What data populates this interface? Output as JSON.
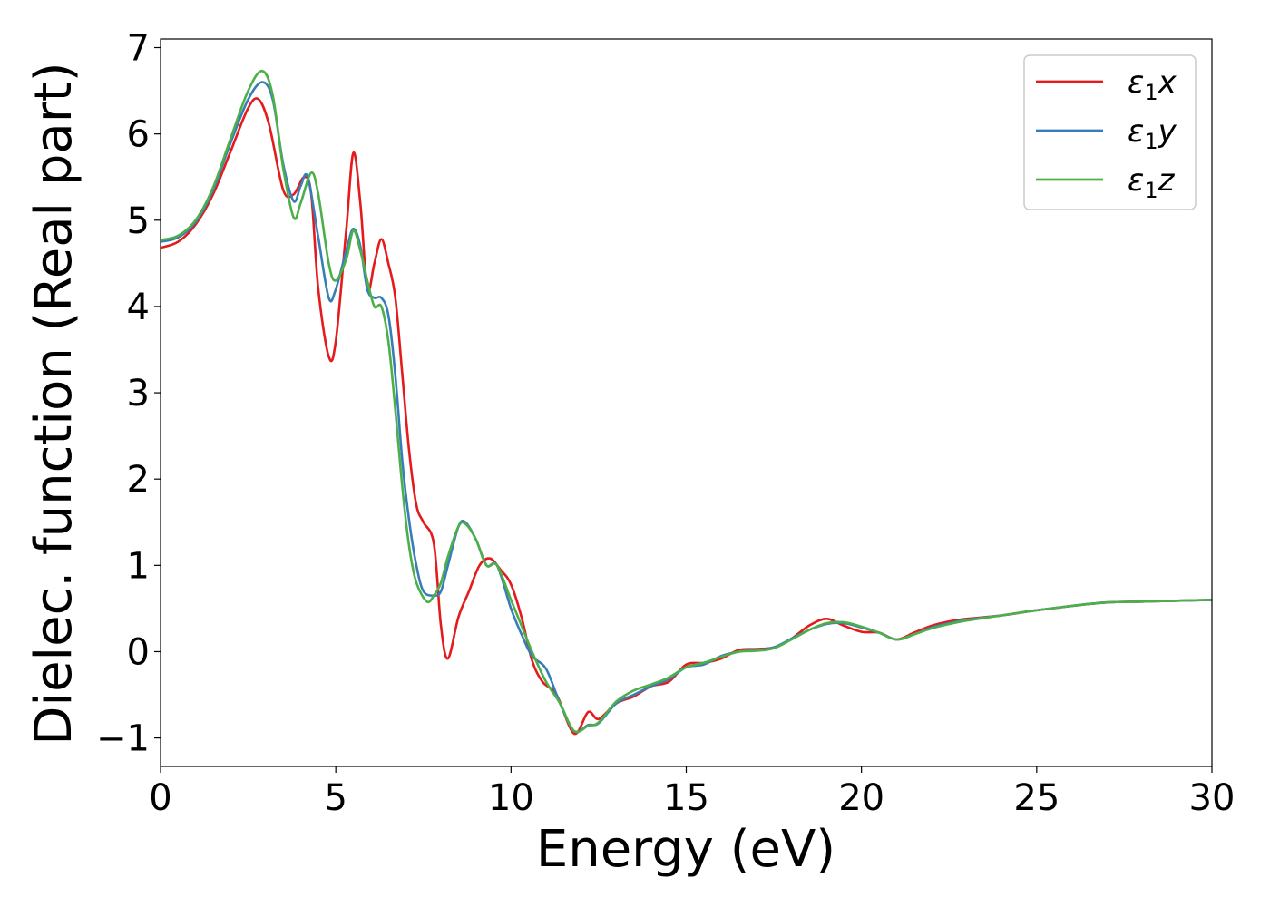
{
  "chart_data": {
    "type": "line",
    "title": "",
    "xlabel": "Energy (eV)",
    "ylabel": "Dielec. function (Real part)",
    "xlim": [
      0,
      30
    ],
    "ylim": [
      -1.33,
      7.1
    ],
    "xticks": [
      0,
      5,
      10,
      15,
      20,
      25,
      30
    ],
    "xtick_labels": [
      "0",
      "5",
      "10",
      "15",
      "20",
      "25",
      "30"
    ],
    "yticks": [
      -1,
      0,
      1,
      2,
      3,
      4,
      5,
      6,
      7
    ],
    "ytick_labels": [
      "−1",
      "0",
      "1",
      "2",
      "3",
      "4",
      "5",
      "6",
      "7"
    ],
    "grid": false,
    "legend_position": "top-right",
    "series": [
      {
        "name": "ε₁x",
        "legend_main": "ε",
        "legend_sub": "1",
        "legend_var": "x",
        "color": "#e41a1c",
        "x": [
          0,
          0.5,
          1.0,
          1.5,
          2.0,
          2.5,
          2.8,
          3.1,
          3.5,
          3.8,
          4.1,
          4.3,
          4.5,
          4.8,
          5.0,
          5.3,
          5.5,
          5.7,
          5.9,
          6.1,
          6.3,
          6.5,
          6.7,
          6.9,
          7.1,
          7.3,
          7.5,
          7.8,
          8.0,
          8.2,
          8.5,
          8.8,
          9.1,
          9.4,
          9.7,
          10.0,
          10.3,
          10.6,
          10.9,
          11.3,
          11.8,
          12.2,
          12.5,
          13.0,
          13.5,
          14.0,
          14.5,
          15.0,
          15.5,
          16.0,
          16.5,
          17.0,
          17.5,
          18.0,
          18.5,
          19.0,
          19.5,
          20.0,
          20.5,
          21.0,
          21.5,
          22.0,
          22.5,
          23.0,
          24.0,
          25.0,
          26.0,
          27.0,
          28.0,
          29.0,
          30.0
        ],
        "y": [
          4.68,
          4.75,
          4.95,
          5.3,
          5.8,
          6.3,
          6.4,
          6.1,
          5.35,
          5.3,
          5.5,
          5.3,
          4.2,
          3.42,
          3.6,
          4.9,
          5.78,
          5.2,
          4.2,
          4.5,
          4.78,
          4.5,
          4.1,
          3.2,
          2.3,
          1.7,
          1.5,
          1.25,
          0.3,
          -0.08,
          0.4,
          0.7,
          1.0,
          1.08,
          0.95,
          0.78,
          0.4,
          -0.1,
          -0.35,
          -0.5,
          -0.95,
          -0.7,
          -0.78,
          -0.6,
          -0.52,
          -0.4,
          -0.35,
          -0.15,
          -0.13,
          -0.08,
          0.02,
          0.03,
          0.05,
          0.15,
          0.3,
          0.38,
          0.3,
          0.23,
          0.22,
          0.14,
          0.22,
          0.3,
          0.35,
          0.38,
          0.42,
          0.48,
          0.53,
          0.57,
          0.58,
          0.59,
          0.6
        ]
      },
      {
        "name": "ε₁y",
        "legend_main": "ε",
        "legend_sub": "1",
        "legend_var": "y",
        "color": "#377eb8",
        "x": [
          0,
          0.5,
          1.0,
          1.5,
          2.0,
          2.5,
          2.9,
          3.2,
          3.5,
          3.8,
          4.0,
          4.2,
          4.5,
          4.8,
          5.0,
          5.3,
          5.5,
          5.7,
          5.9,
          6.1,
          6.3,
          6.5,
          6.7,
          6.9,
          7.1,
          7.3,
          7.5,
          7.8,
          8.0,
          8.2,
          8.5,
          8.7,
          9.0,
          9.3,
          9.6,
          10.0,
          10.3,
          10.6,
          11.0,
          11.4,
          11.8,
          12.2,
          12.5,
          13.0,
          13.5,
          14.0,
          14.5,
          15.0,
          15.5,
          16.0,
          16.5,
          17.0,
          17.5,
          18.0,
          18.5,
          19.0,
          19.5,
          20.0,
          20.5,
          21.0,
          21.5,
          22.0,
          22.5,
          23.0,
          24.0,
          25.0,
          26.0,
          27.0,
          28.0,
          29.0,
          30.0
        ],
        "y": [
          4.75,
          4.8,
          4.98,
          5.35,
          5.9,
          6.4,
          6.6,
          6.4,
          5.65,
          5.22,
          5.4,
          5.5,
          4.8,
          4.1,
          4.2,
          4.65,
          4.9,
          4.7,
          4.2,
          4.1,
          4.1,
          3.9,
          3.2,
          2.2,
          1.5,
          1.0,
          0.7,
          0.65,
          0.7,
          1.0,
          1.45,
          1.5,
          1.3,
          1.0,
          1.0,
          0.5,
          0.2,
          -0.05,
          -0.2,
          -0.6,
          -0.92,
          -0.85,
          -0.83,
          -0.6,
          -0.5,
          -0.4,
          -0.32,
          -0.18,
          -0.15,
          -0.05,
          0.0,
          0.02,
          0.05,
          0.15,
          0.25,
          0.32,
          0.33,
          0.28,
          0.22,
          0.14,
          0.2,
          0.28,
          0.33,
          0.37,
          0.42,
          0.48,
          0.53,
          0.57,
          0.58,
          0.59,
          0.6
        ]
      },
      {
        "name": "ε₁z",
        "legend_main": "ε",
        "legend_sub": "1",
        "legend_var": "z",
        "color": "#4daf4a",
        "x": [
          0,
          0.5,
          1.0,
          1.5,
          2.0,
          2.5,
          2.9,
          3.2,
          3.5,
          3.8,
          4.0,
          4.3,
          4.5,
          4.8,
          5.0,
          5.3,
          5.5,
          5.7,
          5.9,
          6.1,
          6.3,
          6.5,
          6.7,
          6.9,
          7.1,
          7.3,
          7.6,
          7.8,
          8.0,
          8.2,
          8.5,
          8.7,
          9.0,
          9.3,
          9.6,
          10.0,
          10.3,
          10.6,
          11.0,
          11.4,
          11.8,
          12.2,
          12.5,
          13.0,
          13.5,
          14.0,
          14.5,
          15.0,
          15.5,
          16.0,
          16.5,
          17.0,
          17.5,
          18.0,
          18.5,
          19.0,
          19.5,
          20.0,
          20.5,
          21.0,
          21.5,
          22.0,
          22.5,
          23.0,
          24.0,
          25.0,
          26.0,
          27.0,
          28.0,
          29.0,
          30.0
        ],
        "y": [
          4.77,
          4.82,
          5.0,
          5.38,
          5.95,
          6.5,
          6.73,
          6.45,
          5.6,
          5.03,
          5.2,
          5.55,
          5.3,
          4.5,
          4.3,
          4.55,
          4.88,
          4.65,
          4.3,
          4.0,
          4.0,
          3.6,
          2.8,
          1.9,
          1.2,
          0.8,
          0.58,
          0.65,
          0.8,
          1.1,
          1.45,
          1.48,
          1.3,
          1.0,
          1.0,
          0.6,
          0.3,
          0.0,
          -0.35,
          -0.6,
          -0.92,
          -0.86,
          -0.82,
          -0.58,
          -0.45,
          -0.38,
          -0.3,
          -0.18,
          -0.13,
          -0.06,
          0.0,
          0.01,
          0.04,
          0.14,
          0.25,
          0.33,
          0.34,
          0.29,
          0.22,
          0.14,
          0.2,
          0.27,
          0.32,
          0.36,
          0.42,
          0.48,
          0.53,
          0.57,
          0.58,
          0.59,
          0.6
        ]
      }
    ]
  }
}
